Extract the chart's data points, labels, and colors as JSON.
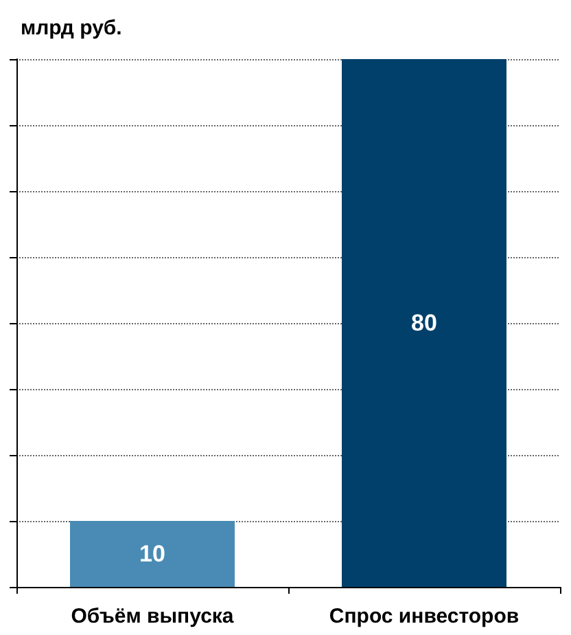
{
  "chart_data": {
    "type": "bar",
    "title": "млрд руб.",
    "categories": [
      "Объём выпуска",
      "Спрос инвесторов"
    ],
    "values": [
      10,
      80
    ],
    "colors": [
      "#4a8bb5",
      "#00406b"
    ],
    "ylim": [
      0,
      80
    ],
    "yticks": [
      {
        "value": 0,
        "label": null
      },
      {
        "value": 10,
        "label": null
      },
      {
        "value": 20,
        "label": null
      },
      {
        "value": 30,
        "label": null
      },
      {
        "value": 40,
        "label": null
      },
      {
        "value": 50,
        "label": null
      },
      {
        "value": 60,
        "label": null
      },
      {
        "value": 70,
        "label": null
      },
      {
        "value": 80,
        "label": null
      }
    ],
    "tick_labels": "x",
    "grid": "y",
    "data_labels": true
  }
}
